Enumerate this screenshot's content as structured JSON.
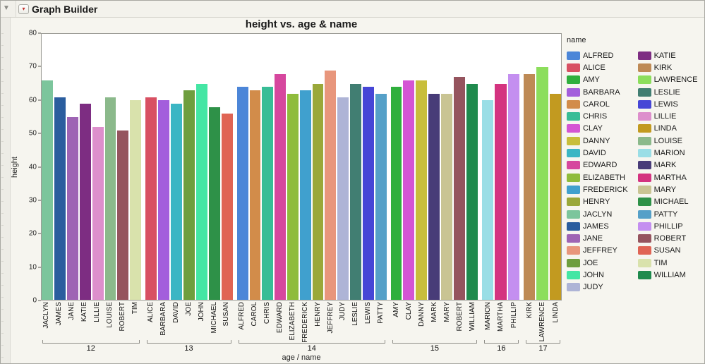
{
  "window": {
    "title": "Graph Builder",
    "outline_disclosure_icon": "▼",
    "red_triangle_icon": "▾"
  },
  "chart_data": {
    "type": "bar",
    "title": "height vs. age & name",
    "xlabel": "age / name",
    "ylabel": "height",
    "ylim": [
      0,
      80
    ],
    "yticks": [
      0,
      10,
      20,
      30,
      40,
      50,
      60,
      70,
      80
    ],
    "grid": false,
    "legend_title": "name",
    "legend_position": "right",
    "groups": [
      {
        "age": "12",
        "bars": [
          [
            "JACLYN",
            66
          ],
          [
            "JAMES",
            61
          ],
          [
            "JANE",
            55
          ],
          [
            "KATIE",
            59
          ],
          [
            "LILLIE",
            52
          ],
          [
            "LOUISE",
            61
          ],
          [
            "ROBERT",
            51
          ],
          [
            "TIM",
            60
          ]
        ]
      },
      {
        "age": "13",
        "bars": [
          [
            "ALICE",
            61
          ],
          [
            "BARBARA",
            60
          ],
          [
            "DAVID",
            59
          ],
          [
            "JOE",
            63
          ],
          [
            "JOHN",
            65
          ],
          [
            "MICHAEL",
            58
          ],
          [
            "SUSAN",
            56
          ]
        ]
      },
      {
        "age": "14",
        "bars": [
          [
            "ALFRED",
            64
          ],
          [
            "CAROL",
            63
          ],
          [
            "CHRIS",
            64
          ],
          [
            "EDWARD",
            68
          ],
          [
            "ELIZABETH",
            62
          ],
          [
            "FREDERICK",
            63
          ],
          [
            "HENRY",
            65
          ],
          [
            "JEFFREY",
            69
          ],
          [
            "JUDY",
            61
          ],
          [
            "LESLIE",
            65
          ],
          [
            "LEWIS",
            64
          ],
          [
            "PATTY",
            62
          ]
        ]
      },
      {
        "age": "15",
        "bars": [
          [
            "AMY",
            64
          ],
          [
            "CLAY",
            66
          ],
          [
            "DANNY",
            66
          ],
          [
            "MARK",
            62
          ],
          [
            "MARY",
            62
          ],
          [
            "ROBERT",
            67
          ],
          [
            "WILLIAM",
            65
          ]
        ]
      },
      {
        "age": "16",
        "bars": [
          [
            "MARION",
            60
          ],
          [
            "MARTHA",
            65
          ],
          [
            "PHILLIP",
            68
          ]
        ]
      },
      {
        "age": "17",
        "bars": [
          [
            "KIRK",
            68
          ],
          [
            "LAWRENCE",
            70
          ],
          [
            "LINDA",
            62
          ]
        ]
      }
    ],
    "colors": {
      "ALFRED": "#4C86D8",
      "ALICE": "#D85062",
      "AMY": "#2FAF3D",
      "BARBARA": "#A35EDC",
      "CAROL": "#D28C4A",
      "CHRIS": "#38BD96",
      "CLAY": "#D455D4",
      "DANNY": "#C8BE3C",
      "DAVID": "#3BB6C4",
      "EDWARD": "#D6479E",
      "ELIZABETH": "#8FBC3C",
      "FREDERICK": "#40A0CE",
      "HENRY": "#9AA83A",
      "JACLYN": "#7CC59C",
      "JAMES": "#2A5D9E",
      "JANE": "#9E64B4",
      "JEFFREY": "#E8967C",
      "JOE": "#6E9E3E",
      "JOHN": "#44E6A4",
      "JUDY": "#AEB4D6",
      "KATIE": "#7D2D82",
      "KIRK": "#BE8A55",
      "LAWRENCE": "#8CDE5C",
      "LESLIE": "#417E72",
      "LEWIS": "#4646D6",
      "LILLIE": "#DD8FCC",
      "LINDA": "#C29A20",
      "LOUISE": "#8BB98B",
      "MARION": "#9ADEE6",
      "MARK": "#483C78",
      "MARTHA": "#D43380",
      "MARY": "#C9C493",
      "MICHAEL": "#2E9148",
      "PATTY": "#55A0C8",
      "PHILLIP": "#C48FF0",
      "ROBERT": "#95545E",
      "SUSAN": "#E06454",
      "TIM": "#D9E2AC",
      "WILLIAM": "#1F8A4D"
    },
    "legend_names": [
      "ALFRED",
      "ALICE",
      "AMY",
      "BARBARA",
      "CAROL",
      "CHRIS",
      "CLAY",
      "DANNY",
      "DAVID",
      "EDWARD",
      "ELIZABETH",
      "FREDERICK",
      "HENRY",
      "JACLYN",
      "JAMES",
      "JANE",
      "JEFFREY",
      "JOE",
      "JOHN",
      "JUDY",
      "KATIE",
      "KIRK",
      "LAWRENCE",
      "LESLIE",
      "LEWIS",
      "LILLIE",
      "LINDA",
      "LOUISE",
      "MARION",
      "MARK",
      "MARTHA",
      "MARY",
      "MICHAEL",
      "PATTY",
      "PHILLIP",
      "ROBERT",
      "SUSAN",
      "TIM",
      "WILLIAM"
    ],
    "legend_split": 20
  }
}
